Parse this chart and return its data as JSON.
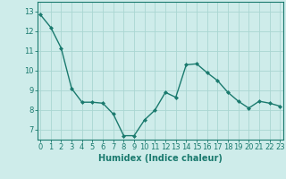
{
  "x": [
    0,
    1,
    2,
    3,
    4,
    5,
    6,
    7,
    8,
    9,
    10,
    11,
    12,
    13,
    14,
    15,
    16,
    17,
    18,
    19,
    20,
    21,
    22,
    23
  ],
  "y": [
    12.85,
    12.2,
    11.15,
    9.1,
    8.4,
    8.4,
    8.35,
    7.8,
    6.7,
    6.7,
    7.5,
    8.0,
    8.9,
    8.65,
    10.3,
    10.35,
    9.9,
    9.5,
    8.9,
    8.45,
    8.1,
    8.45,
    8.35,
    8.2
  ],
  "line_color": "#1a7a6e",
  "marker": "D",
  "marker_size": 2.0,
  "linewidth": 1.0,
  "bg_color": "#ceecea",
  "grid_color": "#aad6d2",
  "xlabel": "Humidex (Indice chaleur)",
  "xlabel_fontsize": 7,
  "tick_fontsize": 6,
  "ylim": [
    6.5,
    13.5
  ],
  "yticks": [
    7,
    8,
    9,
    10,
    11,
    12,
    13
  ],
  "xticks": [
    0,
    1,
    2,
    3,
    4,
    5,
    6,
    7,
    8,
    9,
    10,
    11,
    12,
    13,
    14,
    15,
    16,
    17,
    18,
    19,
    20,
    21,
    22,
    23
  ],
  "xlim": [
    -0.3,
    23.3
  ]
}
